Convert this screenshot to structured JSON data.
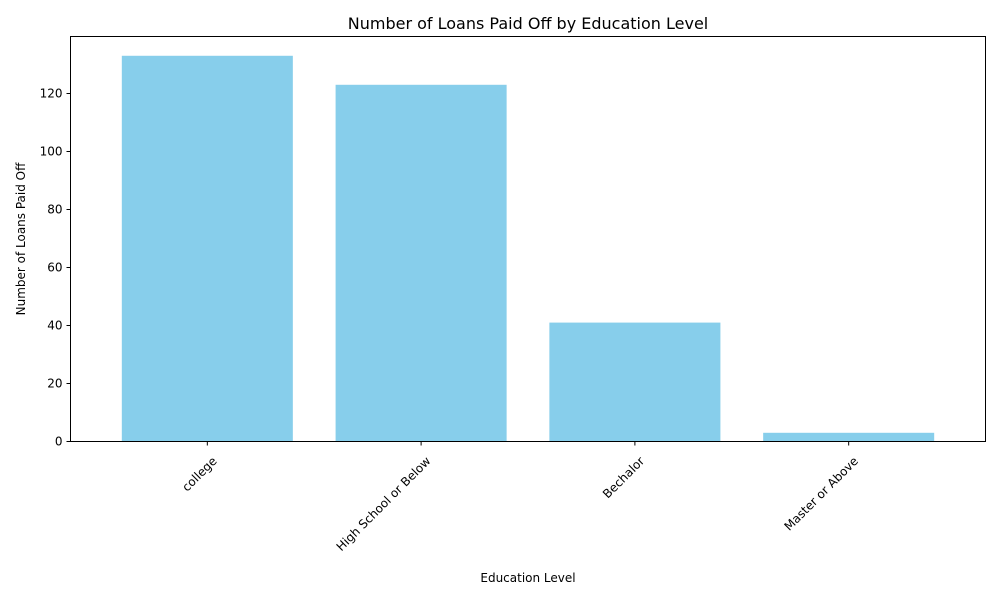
{
  "chart_data": {
    "type": "bar",
    "title": "Number of Loans Paid Off by Education Level",
    "xlabel": "Education Level",
    "ylabel": "Number of Loans Paid Off",
    "categories": [
      "college",
      "High School or Below",
      "Bechalor",
      "Master or Above"
    ],
    "values": [
      133,
      123,
      41,
      3
    ],
    "ylim": [
      0,
      139.65
    ],
    "yticks": [
      0,
      20,
      40,
      60,
      80,
      100,
      120
    ],
    "grid": false,
    "legend": "none",
    "bar_color": "#87CEEB"
  }
}
